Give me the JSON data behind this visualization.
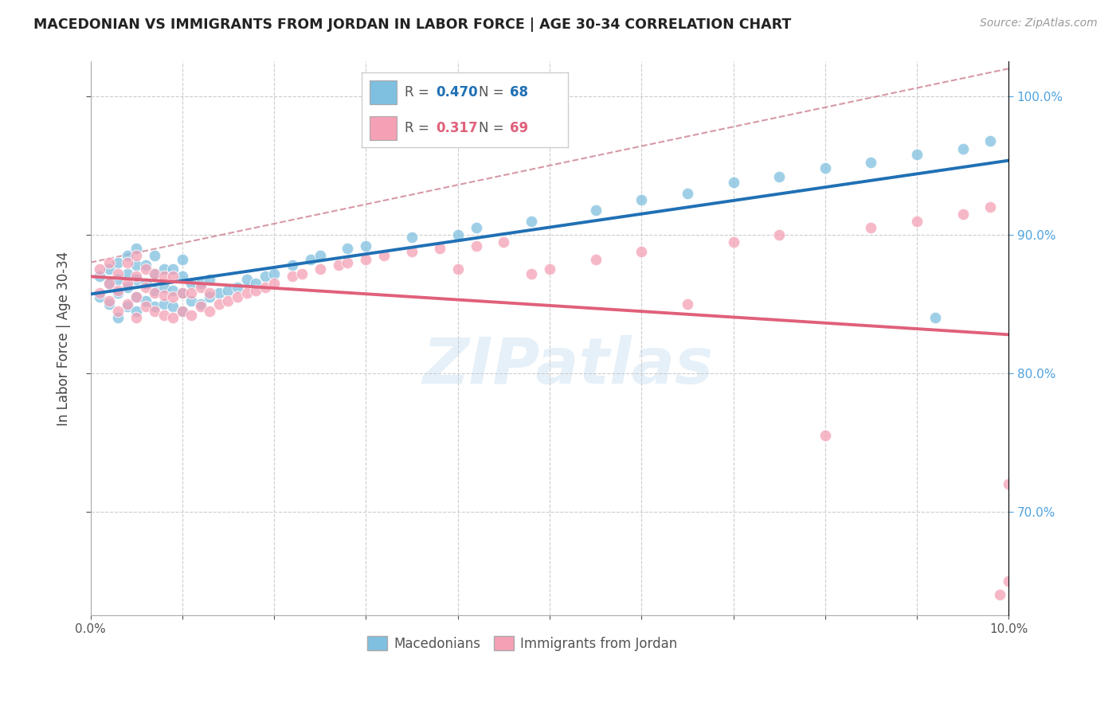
{
  "title": "MACEDONIAN VS IMMIGRANTS FROM JORDAN IN LABOR FORCE | AGE 30-34 CORRELATION CHART",
  "source": "Source: ZipAtlas.com",
  "ylabel": "In Labor Force | Age 30-34",
  "xlim": [
    0.0,
    0.1
  ],
  "ylim": [
    0.625,
    1.025
  ],
  "x_ticks": [
    0.0,
    0.01,
    0.02,
    0.03,
    0.04,
    0.05,
    0.06,
    0.07,
    0.08,
    0.09,
    0.1
  ],
  "y_ticks": [
    0.7,
    0.8,
    0.9,
    1.0
  ],
  "blue_color": "#7fbfdf",
  "pink_color": "#f4a0b5",
  "blue_line_color": "#2070b4",
  "pink_line_color": "#e0607a",
  "diag_color": "#d08090",
  "legend_R1": "0.470",
  "legend_N1": "68",
  "legend_R2": "0.317",
  "legend_N2": "69",
  "watermark": "ZIPatlas",
  "blue_x": [
    0.001,
    0.001,
    0.002,
    0.002,
    0.002,
    0.003,
    0.003,
    0.003,
    0.003,
    0.004,
    0.004,
    0.004,
    0.004,
    0.005,
    0.005,
    0.005,
    0.005,
    0.005,
    0.006,
    0.006,
    0.006,
    0.007,
    0.007,
    0.007,
    0.007,
    0.008,
    0.008,
    0.008,
    0.009,
    0.009,
    0.009,
    0.01,
    0.01,
    0.01,
    0.01,
    0.011,
    0.011,
    0.012,
    0.012,
    0.013,
    0.013,
    0.014,
    0.015,
    0.016,
    0.017,
    0.018,
    0.019,
    0.02,
    0.022,
    0.024,
    0.025,
    0.028,
    0.03,
    0.035,
    0.04,
    0.042,
    0.048,
    0.055,
    0.06,
    0.065,
    0.07,
    0.075,
    0.08,
    0.085,
    0.09,
    0.092,
    0.095,
    0.098
  ],
  "blue_y": [
    0.855,
    0.87,
    0.85,
    0.865,
    0.875,
    0.84,
    0.858,
    0.868,
    0.88,
    0.848,
    0.862,
    0.872,
    0.885,
    0.845,
    0.855,
    0.868,
    0.878,
    0.89,
    0.852,
    0.865,
    0.878,
    0.848,
    0.86,
    0.872,
    0.885,
    0.85,
    0.862,
    0.875,
    0.848,
    0.86,
    0.875,
    0.845,
    0.858,
    0.87,
    0.882,
    0.852,
    0.865,
    0.85,
    0.865,
    0.855,
    0.868,
    0.858,
    0.86,
    0.862,
    0.868,
    0.865,
    0.87,
    0.872,
    0.878,
    0.882,
    0.885,
    0.89,
    0.892,
    0.898,
    0.9,
    0.905,
    0.91,
    0.918,
    0.925,
    0.93,
    0.938,
    0.942,
    0.948,
    0.952,
    0.958,
    0.84,
    0.962,
    0.968
  ],
  "pink_x": [
    0.001,
    0.001,
    0.002,
    0.002,
    0.002,
    0.003,
    0.003,
    0.003,
    0.004,
    0.004,
    0.004,
    0.005,
    0.005,
    0.005,
    0.005,
    0.006,
    0.006,
    0.006,
    0.007,
    0.007,
    0.007,
    0.008,
    0.008,
    0.008,
    0.009,
    0.009,
    0.009,
    0.01,
    0.01,
    0.011,
    0.011,
    0.012,
    0.012,
    0.013,
    0.013,
    0.014,
    0.015,
    0.016,
    0.017,
    0.018,
    0.019,
    0.02,
    0.022,
    0.023,
    0.025,
    0.027,
    0.028,
    0.03,
    0.032,
    0.035,
    0.038,
    0.04,
    0.042,
    0.045,
    0.048,
    0.05,
    0.055,
    0.06,
    0.065,
    0.07,
    0.075,
    0.08,
    0.085,
    0.09,
    0.095,
    0.098,
    0.099,
    0.1,
    0.1
  ],
  "pink_y": [
    0.858,
    0.875,
    0.852,
    0.865,
    0.88,
    0.845,
    0.86,
    0.872,
    0.85,
    0.865,
    0.88,
    0.84,
    0.855,
    0.87,
    0.885,
    0.848,
    0.862,
    0.875,
    0.845,
    0.858,
    0.872,
    0.842,
    0.856,
    0.87,
    0.84,
    0.855,
    0.87,
    0.845,
    0.858,
    0.842,
    0.858,
    0.848,
    0.862,
    0.845,
    0.858,
    0.85,
    0.852,
    0.855,
    0.858,
    0.86,
    0.862,
    0.865,
    0.87,
    0.872,
    0.875,
    0.878,
    0.88,
    0.882,
    0.885,
    0.888,
    0.89,
    0.875,
    0.892,
    0.895,
    0.872,
    0.875,
    0.882,
    0.888,
    0.85,
    0.895,
    0.9,
    0.755,
    0.905,
    0.91,
    0.915,
    0.92,
    0.64,
    0.65,
    0.72
  ]
}
